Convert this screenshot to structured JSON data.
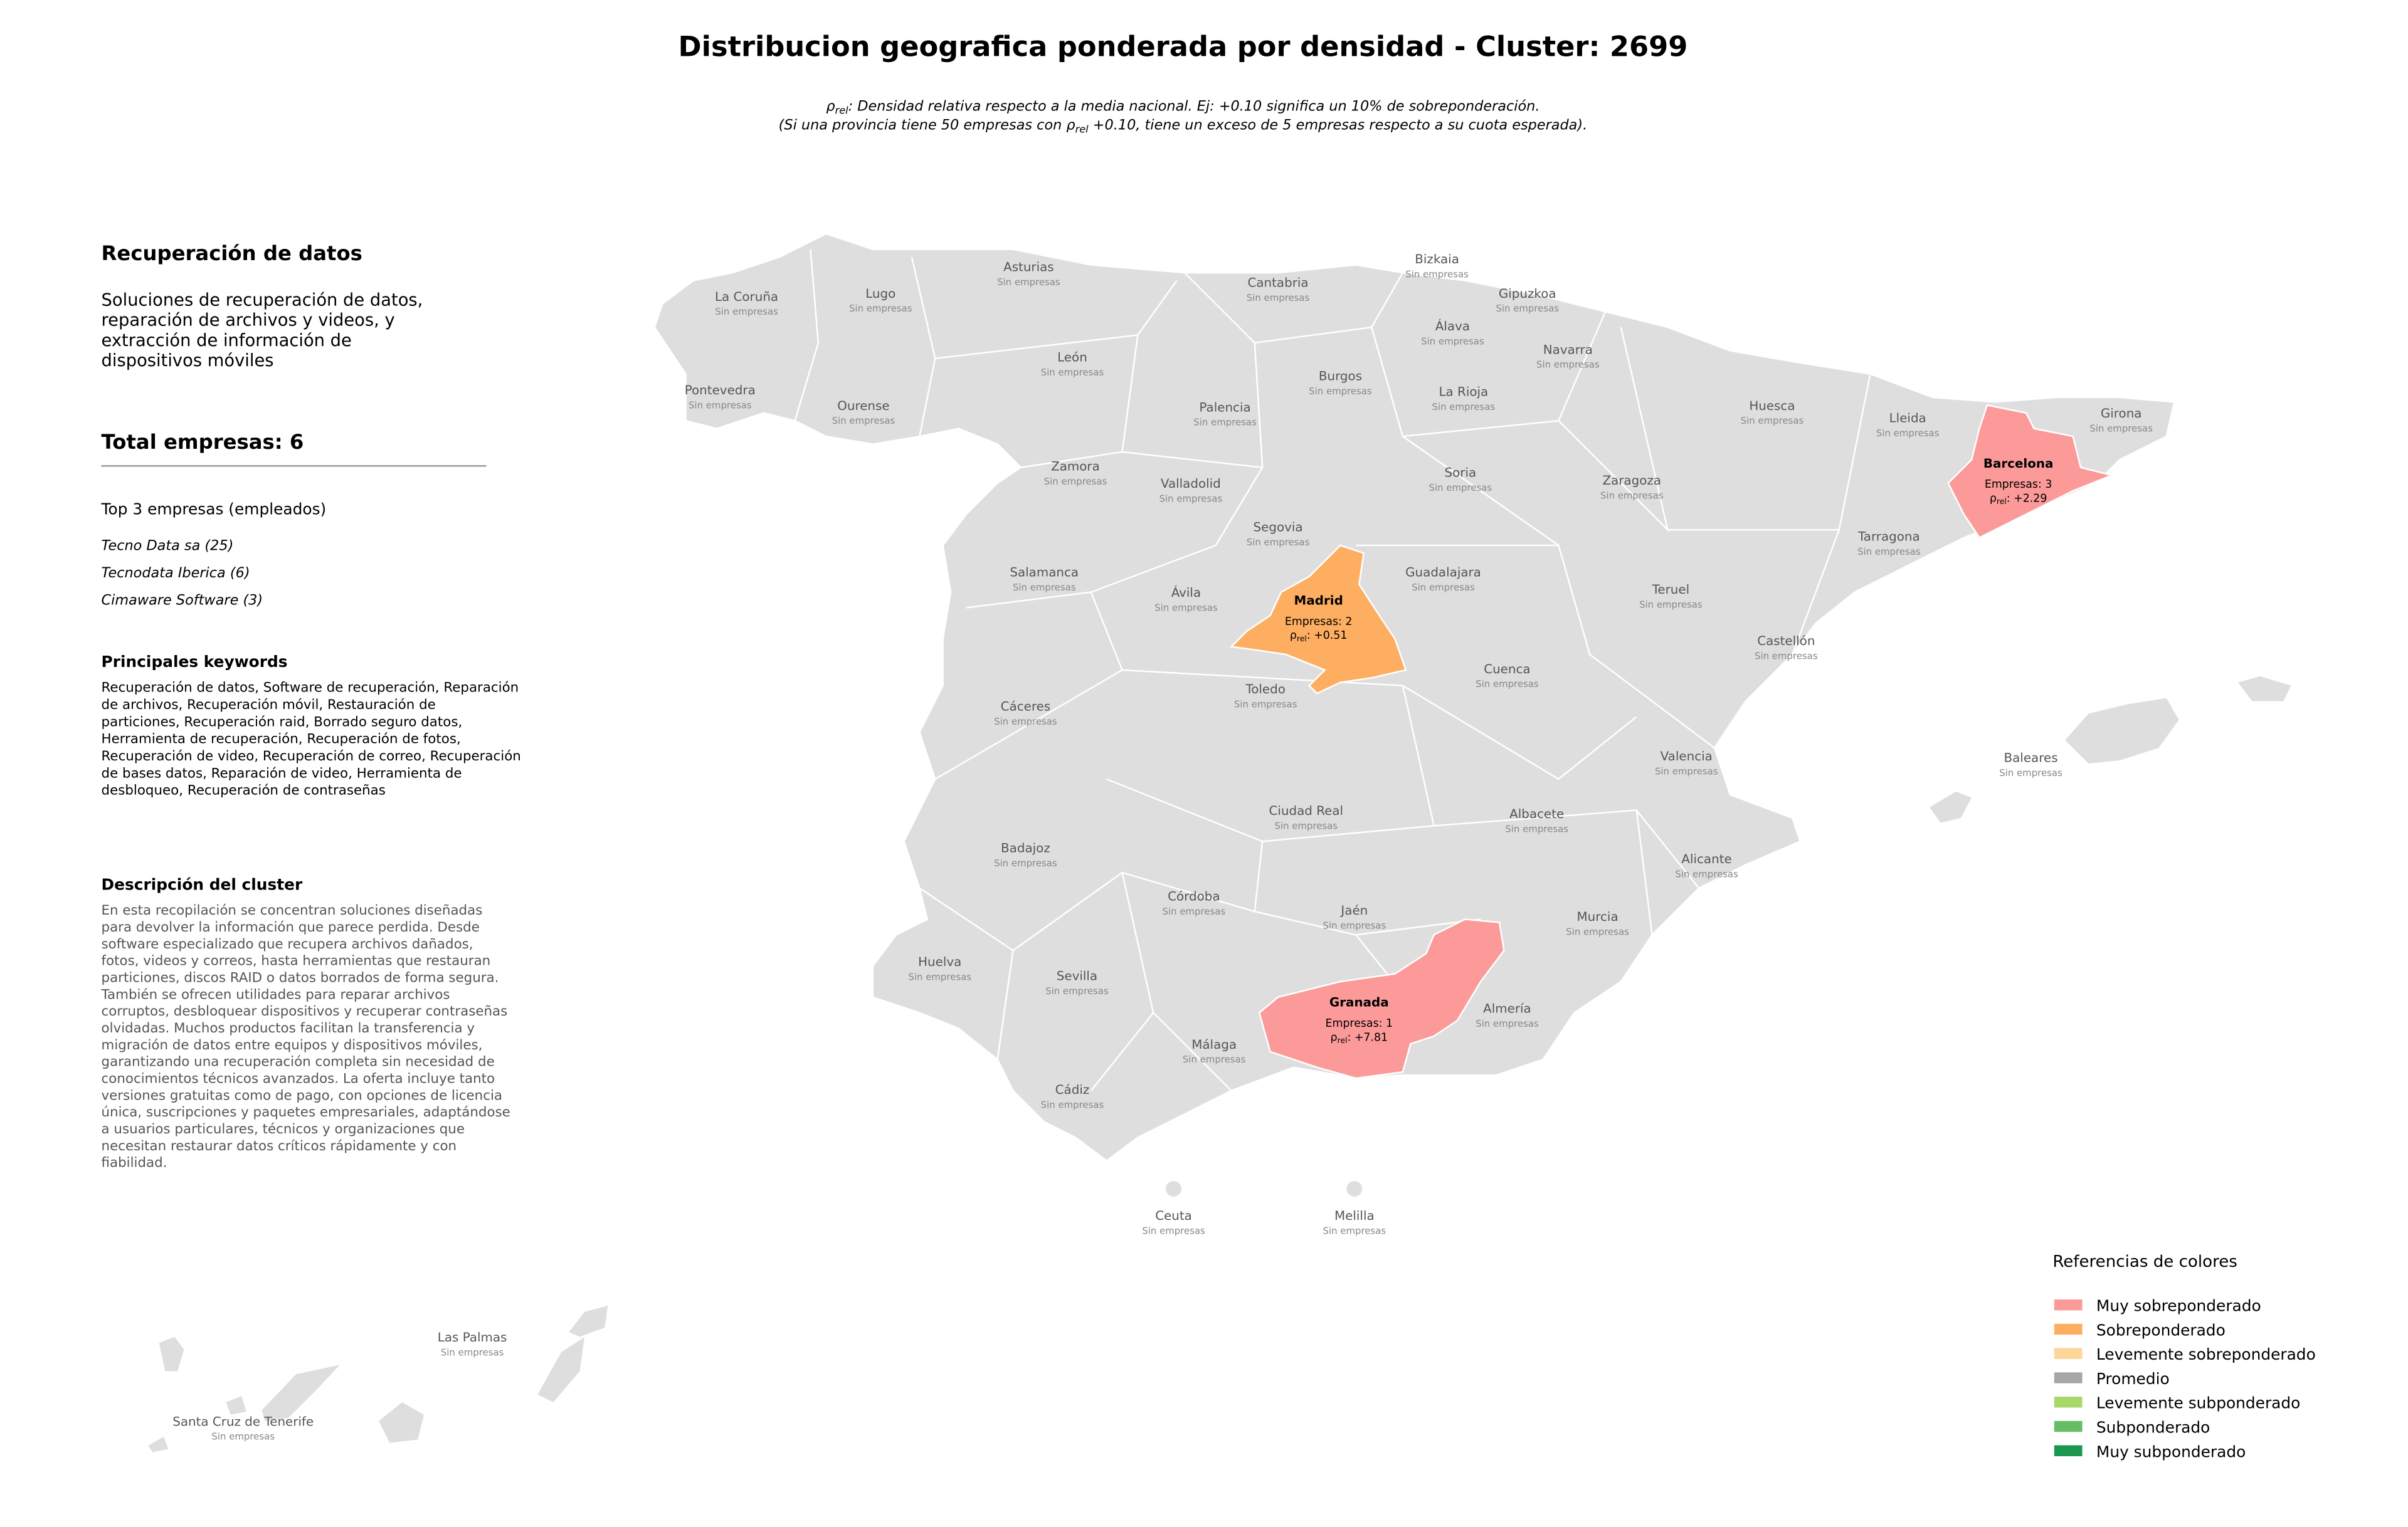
{
  "title": "Distribucion geografica ponderada por densidad - Cluster: 2699",
  "note": {
    "line1": {
      "symbol": "ρ",
      "subscript": "rel",
      "text": ": Densidad relativa respecto a la media nacional. Ej: +0.10 significa un 10% de sobreponderación."
    },
    "line2": {
      "before": "(Si una provincia tiene 50 empresas con ",
      "symbol": "ρ",
      "subscript": "rel",
      "after": " +0.10, tiene un exceso de 5 empresas respecto a su cuota esperada)."
    }
  },
  "sidebar": {
    "heading": "Recuperación de datos",
    "summary": [
      "Soluciones de recuperación de datos,",
      "reparación de archivos y videos, y",
      "extracción de información de",
      "dispositivos móviles"
    ],
    "total": "Total empresas: 6",
    "top_heading": "Top 3 empresas (empleados)",
    "top": [
      "Tecno Data sa (25)",
      "Tecnodata Iberica (6)",
      "Cimaware Software (3)"
    ],
    "keywords_heading": "Principales keywords",
    "keywords": [
      "Recuperación de datos, Software de recuperación, Reparación",
      "de archivos, Recuperación móvil, Restauración de",
      "particiones, Recuperación raid, Borrado seguro datos,",
      "Herramienta de recuperación, Recuperación de fotos,",
      "Recuperación de video, Recuperación de correo, Recuperación",
      "de bases datos, Reparación de video, Herramienta de",
      "desbloqueo, Recuperación de contraseñas"
    ],
    "description_heading": "Descripción del cluster",
    "description": [
      "En esta recopilación se concentran soluciones diseñadas",
      "para devolver la información que parece perdida. Desde",
      "software especializado que recupera archivos dañados,",
      "fotos, videos y correos, hasta herramientas que restauran",
      "particiones, discos RAID o datos borrados de forma segura.",
      "También se ofrecen utilidades para reparar archivos",
      "corruptos, desbloquear dispositivos y recuperar contraseñas",
      "olvidadas. Muchos productos facilitan la transferencia y",
      "migración de datos entre equipos y dispositivos móviles,",
      "garantizando una recuperación completa sin necesidad de",
      "conocimientos técnicos avanzados. La oferta incluye tanto",
      "versiones gratuitas como de pago, con opciones de licencia",
      "única, suscripciones y paquetes empresariales, adaptándose",
      "a usuarios particulares, técnicos y organizaciones que",
      "necesitan restaurar datos críticos rápidamente y con",
      "fiabilidad."
    ]
  },
  "empty_color": "#dedede",
  "provinces": [
    {
      "name": "La Coruña",
      "status": "Sin empresas"
    },
    {
      "name": "Lugo",
      "status": "Sin empresas"
    },
    {
      "name": "Asturias",
      "status": "Sin empresas"
    },
    {
      "name": "Cantabria",
      "status": "Sin empresas"
    },
    {
      "name": "Bizkaia",
      "status": "Sin empresas"
    },
    {
      "name": "Gipuzkoa",
      "status": "Sin empresas"
    },
    {
      "name": "Álava",
      "status": "Sin empresas"
    },
    {
      "name": "Navarra",
      "status": "Sin empresas"
    },
    {
      "name": "Pontevedra",
      "status": "Sin empresas"
    },
    {
      "name": "Ourense",
      "status": "Sin empresas"
    },
    {
      "name": "León",
      "status": "Sin empresas"
    },
    {
      "name": "Palencia",
      "status": "Sin empresas"
    },
    {
      "name": "Burgos",
      "status": "Sin empresas"
    },
    {
      "name": "La Rioja",
      "status": "Sin empresas"
    },
    {
      "name": "Huesca",
      "status": "Sin empresas"
    },
    {
      "name": "Lleida",
      "status": "Sin empresas"
    },
    {
      "name": "Girona",
      "status": "Sin empresas"
    },
    {
      "name": "Zamora",
      "status": "Sin empresas"
    },
    {
      "name": "Valladolid",
      "status": "Sin empresas"
    },
    {
      "name": "Soria",
      "status": "Sin empresas"
    },
    {
      "name": "Zaragoza",
      "status": "Sin empresas"
    },
    {
      "name": "Tarragona",
      "status": "Sin empresas"
    },
    {
      "name": "Segovia",
      "status": "Sin empresas"
    },
    {
      "name": "Salamanca",
      "status": "Sin empresas"
    },
    {
      "name": "Ávila",
      "status": "Sin empresas"
    },
    {
      "name": "Guadalajara",
      "status": "Sin empresas"
    },
    {
      "name": "Teruel",
      "status": "Sin empresas"
    },
    {
      "name": "Castellón",
      "status": "Sin empresas"
    },
    {
      "name": "Cuenca",
      "status": "Sin empresas"
    },
    {
      "name": "Toledo",
      "status": "Sin empresas"
    },
    {
      "name": "Cáceres",
      "status": "Sin empresas"
    },
    {
      "name": "Valencia",
      "status": "Sin empresas"
    },
    {
      "name": "Baleares",
      "status": "Sin empresas"
    },
    {
      "name": "Ciudad Real",
      "status": "Sin empresas"
    },
    {
      "name": "Albacete",
      "status": "Sin empresas"
    },
    {
      "name": "Badajoz",
      "status": "Sin empresas"
    },
    {
      "name": "Alicante",
      "status": "Sin empresas"
    },
    {
      "name": "Córdoba",
      "status": "Sin empresas"
    },
    {
      "name": "Jaén",
      "status": "Sin empresas"
    },
    {
      "name": "Murcia",
      "status": "Sin empresas"
    },
    {
      "name": "Huelva",
      "status": "Sin empresas"
    },
    {
      "name": "Sevilla",
      "status": "Sin empresas"
    },
    {
      "name": "Almería",
      "status": "Sin empresas"
    },
    {
      "name": "Málaga",
      "status": "Sin empresas"
    },
    {
      "name": "Cádiz",
      "status": "Sin empresas"
    },
    {
      "name": "Ceuta",
      "status": "Sin empresas"
    },
    {
      "name": "Melilla",
      "status": "Sin empresas"
    },
    {
      "name": "Las Palmas",
      "status": "Sin empresas"
    },
    {
      "name": "Santa Cruz de Tenerife",
      "status": "Sin empresas"
    }
  ],
  "highlighted": [
    {
      "name": "Barcelona",
      "companies": "Empresas: 3",
      "symbol": "ρ",
      "subscript": "rel",
      "value": ": +2.29",
      "color": "#fb9a99"
    },
    {
      "name": "Madrid",
      "companies": "Empresas: 2",
      "symbol": "ρ",
      "subscript": "rel",
      "value": ": +0.51",
      "color": "#fdae61"
    },
    {
      "name": "Granada",
      "companies": "Empresas: 1",
      "symbol": "ρ",
      "subscript": "rel",
      "value": ": +7.81",
      "color": "#fb9a99"
    }
  ],
  "legend": {
    "title": "Referencias de colores",
    "items": [
      {
        "name": "Muy sobreponderado",
        "color": "#fb9a99"
      },
      {
        "name": "Sobreponderado",
        "color": "#fdae61"
      },
      {
        "name": "Levemente sobreponderado",
        "color": "#fed69a"
      },
      {
        "name": "Promedio",
        "color": "#a6a6a6"
      },
      {
        "name": "Levemente subponderado",
        "color": "#a6d96a"
      },
      {
        "name": "Subponderado",
        "color": "#66bd63"
      },
      {
        "name": "Muy subponderado",
        "color": "#1a9850"
      }
    ]
  }
}
